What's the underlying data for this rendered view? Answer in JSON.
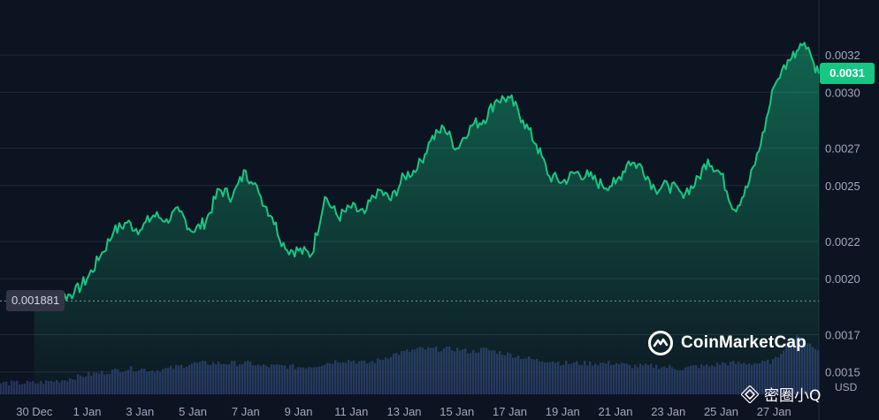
{
  "chart_data": {
    "type": "area",
    "ylim": [
      0.00138,
      0.0034
    ],
    "y_ticks": [
      "0.0032",
      "0.0030",
      "0.0027",
      "0.0025",
      "0.0022",
      "0.0020",
      "0.0017",
      "0.0015"
    ],
    "y_tick_values": [
      0.0032,
      0.003,
      0.0027,
      0.0025,
      0.0022,
      0.002,
      0.0017,
      0.0015
    ],
    "x_ticks": [
      "30 Dec",
      "1 Jan",
      "3 Jan",
      "5 Jan",
      "7 Jan",
      "9 Jan",
      "11 Jan",
      "13 Jan",
      "15 Jan",
      "17 Jan",
      "19 Jan",
      "21 Jan",
      "23 Jan",
      "25 Jan",
      "27 Jan"
    ],
    "x_tick_days": [
      0,
      2,
      4,
      6,
      8,
      10,
      12,
      14,
      16,
      18,
      20,
      22,
      24,
      26,
      28
    ],
    "x_domain_days": [
      -1.3,
      29.7
    ],
    "series": [
      {
        "x_days": [
          0,
          1.0,
          1.5,
          2.0,
          2.5,
          3.0,
          3.5,
          4.0,
          4.5,
          5.0,
          5.5,
          6.0,
          6.5,
          7.0,
          7.5,
          8.0,
          8.2,
          8.5,
          9.0,
          9.5,
          10.0,
          10.5,
          11.0,
          11.5,
          12.0,
          12.5,
          13.0,
          13.5,
          14.0,
          14.5,
          15.0,
          15.5,
          16.0,
          16.5,
          17.0,
          17.5,
          18.0,
          18.5,
          19.0,
          19.5,
          20.0,
          20.5,
          21.0,
          21.5,
          22.0,
          22.5,
          23.0,
          23.5,
          24.0,
          24.5,
          25.0,
          25.5,
          26.0,
          26.5,
          27.0,
          27.5,
          28.0,
          28.3,
          28.6,
          29.0,
          29.3,
          29.5,
          29.7
        ],
        "values": [
          0.001881,
          0.0019,
          0.00192,
          0.002,
          0.00212,
          0.00225,
          0.0023,
          0.00226,
          0.00234,
          0.00232,
          0.00236,
          0.00225,
          0.00231,
          0.00248,
          0.00244,
          0.00258,
          0.00252,
          0.00246,
          0.00233,
          0.00216,
          0.00215,
          0.00213,
          0.00244,
          0.00233,
          0.00238,
          0.00235,
          0.00248,
          0.00242,
          0.00255,
          0.00259,
          0.00274,
          0.00281,
          0.0027,
          0.00282,
          0.00285,
          0.00296,
          0.00297,
          0.00285,
          0.00272,
          0.00255,
          0.00252,
          0.00257,
          0.00255,
          0.0025,
          0.00251,
          0.00263,
          0.0026,
          0.00248,
          0.0025,
          0.00246,
          0.0025,
          0.00264,
          0.00256,
          0.00237,
          0.00249,
          0.00272,
          0.00303,
          0.00312,
          0.00317,
          0.00326,
          0.00324,
          0.00316,
          0.0031
        ],
        "volume": [
          0.2,
          0.25,
          0.3,
          0.35,
          0.38,
          0.42,
          0.45,
          0.45,
          0.42,
          0.45,
          0.5,
          0.55,
          0.55,
          0.55,
          0.55,
          0.55,
          0.55,
          0.5,
          0.5,
          0.5,
          0.48,
          0.5,
          0.55,
          0.6,
          0.6,
          0.55,
          0.6,
          0.7,
          0.75,
          0.8,
          0.8,
          0.8,
          0.8,
          0.75,
          0.8,
          0.75,
          0.7,
          0.65,
          0.6,
          0.6,
          0.55,
          0.55,
          0.55,
          0.55,
          0.55,
          0.5,
          0.5,
          0.5,
          0.48,
          0.45,
          0.5,
          0.5,
          0.55,
          0.55,
          0.55,
          0.55,
          0.6,
          0.8,
          1.0,
          1.0,
          0.9,
          0.8,
          0.8
        ]
      }
    ],
    "open_price": "0.001881",
    "open_price_value": 0.001881,
    "last_price": "0.0031",
    "currency": "USD",
    "grid": true,
    "line_color": "#16c784",
    "volume_color": "#2b3a67"
  },
  "brand": {
    "name": "CoinMarketCap"
  },
  "watermark": {
    "text": "密圈小Q"
  }
}
